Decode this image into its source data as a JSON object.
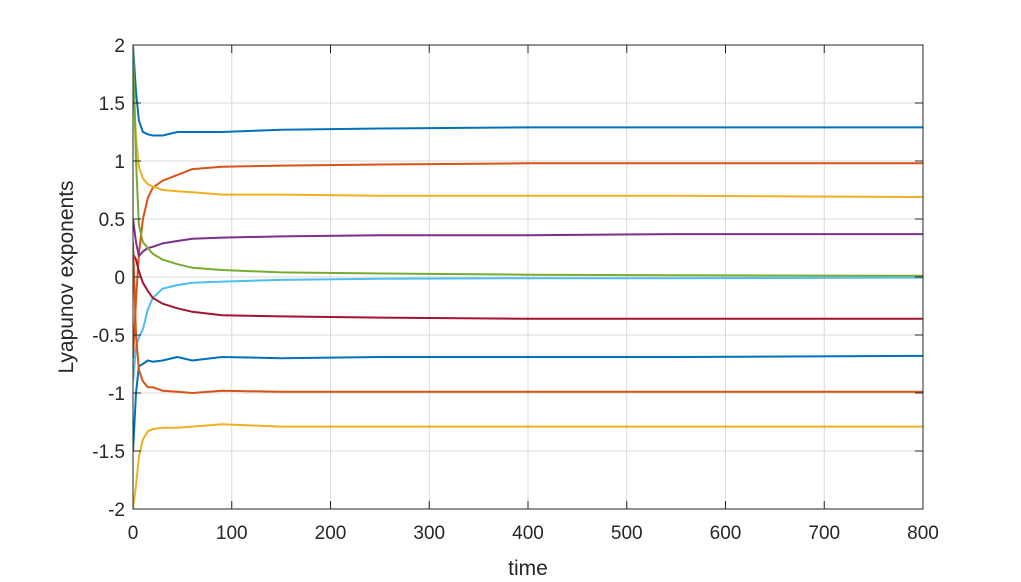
{
  "chart_data": {
    "type": "line",
    "title": "",
    "xlabel": "time",
    "ylabel": "Lyapunov exponents",
    "xlim": [
      0,
      800
    ],
    "ylim": [
      -2,
      2
    ],
    "grid": true,
    "legend": "none",
    "x_ticks": [
      "0",
      "100",
      "200",
      "300",
      "400",
      "500",
      "600",
      "700",
      "800"
    ],
    "y_ticks": [
      "-2",
      "-1.5",
      "-1",
      "-0.5",
      "0",
      "0.5",
      "1",
      "1.5",
      "2"
    ],
    "series": [
      {
        "color": "#0072BD",
        "x": [
          0,
          3,
          6,
          10,
          15,
          20,
          30,
          45,
          60,
          90,
          150,
          250,
          400,
          550,
          800
        ],
        "y": [
          2,
          1.6,
          1.35,
          1.25,
          1.23,
          1.22,
          1.22,
          1.25,
          1.25,
          1.25,
          1.27,
          1.28,
          1.29,
          1.29,
          1.29
        ]
      },
      {
        "color": "#D95319",
        "x": [
          0,
          3,
          6,
          10,
          15,
          20,
          30,
          45,
          60,
          90,
          150,
          250,
          400,
          550,
          800
        ],
        "y": [
          -0.7,
          -0.2,
          0.2,
          0.5,
          0.68,
          0.77,
          0.83,
          0.88,
          0.93,
          0.95,
          0.96,
          0.97,
          0.98,
          0.98,
          0.98
        ]
      },
      {
        "color": "#EDB120",
        "x": [
          0,
          3,
          6,
          10,
          15,
          20,
          30,
          45,
          60,
          90,
          150,
          250,
          400,
          550,
          800
        ],
        "y": [
          1.8,
          1.2,
          0.95,
          0.85,
          0.8,
          0.78,
          0.75,
          0.74,
          0.73,
          0.71,
          0.71,
          0.7,
          0.7,
          0.7,
          0.69
        ]
      },
      {
        "color": "#7E2F8E",
        "x": [
          0,
          3,
          6,
          10,
          15,
          20,
          30,
          45,
          60,
          90,
          150,
          250,
          400,
          550,
          800
        ],
        "y": [
          0.5,
          0.3,
          0.18,
          0.22,
          0.25,
          0.26,
          0.29,
          0.31,
          0.33,
          0.34,
          0.35,
          0.36,
          0.36,
          0.37,
          0.37
        ]
      },
      {
        "color": "#77AC30",
        "x": [
          0,
          3,
          6,
          10,
          15,
          20,
          30,
          45,
          60,
          90,
          150,
          250,
          400,
          550,
          800
        ],
        "y": [
          2,
          1.0,
          0.45,
          0.3,
          0.25,
          0.2,
          0.15,
          0.11,
          0.08,
          0.06,
          0.04,
          0.03,
          0.02,
          0.015,
          0.01
        ]
      },
      {
        "color": "#4DBEEE",
        "x": [
          0,
          3,
          6,
          10,
          15,
          20,
          30,
          45,
          60,
          90,
          150,
          250,
          400,
          550,
          800
        ],
        "y": [
          -0.9,
          -0.6,
          -0.52,
          -0.45,
          -0.28,
          -0.18,
          -0.1,
          -0.07,
          -0.05,
          -0.04,
          -0.025,
          -0.015,
          -0.01,
          -0.01,
          -0.005
        ]
      },
      {
        "color": "#A2142F",
        "x": [
          0,
          3,
          6,
          10,
          15,
          20,
          30,
          45,
          60,
          90,
          150,
          250,
          400,
          550,
          800
        ],
        "y": [
          0.2,
          0.15,
          0.05,
          -0.05,
          -0.12,
          -0.18,
          -0.23,
          -0.27,
          -0.3,
          -0.33,
          -0.34,
          -0.35,
          -0.36,
          -0.36,
          -0.36
        ]
      },
      {
        "color": "#0072BD",
        "x": [
          0,
          3,
          6,
          10,
          15,
          20,
          30,
          45,
          60,
          90,
          150,
          250,
          400,
          550,
          800
        ],
        "y": [
          -1.5,
          -1.0,
          -0.77,
          -0.75,
          -0.72,
          -0.73,
          -0.72,
          -0.69,
          -0.72,
          -0.69,
          -0.7,
          -0.69,
          -0.69,
          -0.69,
          -0.68
        ]
      },
      {
        "color": "#D95319",
        "x": [
          0,
          3,
          6,
          10,
          15,
          20,
          30,
          45,
          60,
          90,
          150,
          250,
          400,
          550,
          800
        ],
        "y": [
          0.3,
          -0.5,
          -0.8,
          -0.9,
          -0.95,
          -0.95,
          -0.98,
          -0.99,
          -1.0,
          -0.98,
          -0.99,
          -0.99,
          -0.99,
          -0.99,
          -0.99
        ]
      },
      {
        "color": "#EDB120",
        "x": [
          0,
          3,
          6,
          10,
          15,
          20,
          30,
          45,
          60,
          90,
          150,
          250,
          400,
          550,
          800
        ],
        "y": [
          -2,
          -1.8,
          -1.55,
          -1.4,
          -1.33,
          -1.31,
          -1.3,
          -1.3,
          -1.29,
          -1.27,
          -1.29,
          -1.29,
          -1.29,
          -1.29,
          -1.29
        ]
      }
    ]
  }
}
